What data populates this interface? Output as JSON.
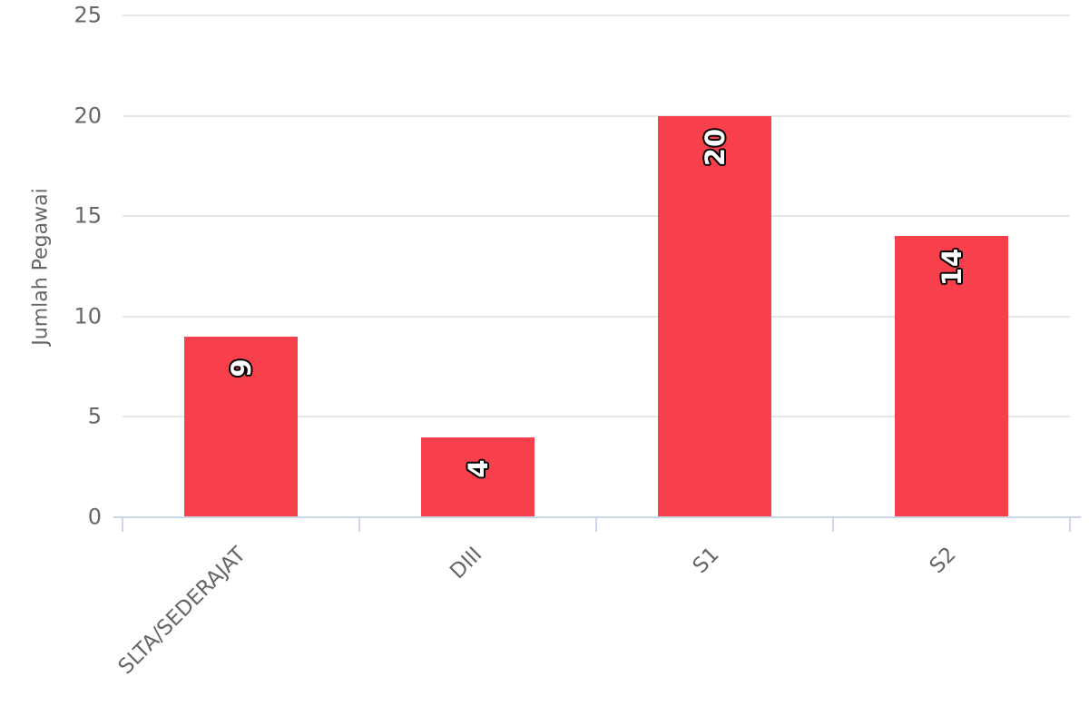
{
  "chart_data": {
    "type": "bar",
    "title": "",
    "categories": [
      "SLTA/SEDERAJAT",
      "DIII",
      "S1",
      "S2"
    ],
    "values": [
      9,
      4,
      20,
      14
    ],
    "xlabel": "",
    "ylabel": "Jumlah Pegawai",
    "yticks": [
      0,
      5,
      10,
      15,
      20,
      25
    ],
    "ylim": [
      0,
      25
    ],
    "grid": "horizontal",
    "legend_position": "none",
    "value_labels": "inside-top, rotated -90deg",
    "colors": {
      "bar": "#F8404D",
      "grid": "#E6E6E6",
      "axis": "#CCD6EB",
      "axis_label": "#666666",
      "value_label_fill": "#FFFFFF",
      "value_label_outline": "#000000",
      "background": "#FFFFFF"
    }
  }
}
